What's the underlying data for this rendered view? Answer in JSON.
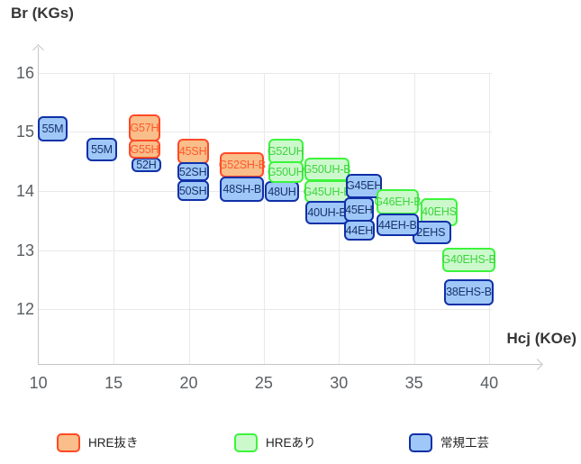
{
  "chart_data": {
    "type": "scatter",
    "title": "",
    "xlabel": "Hcj (KOe)",
    "ylabel": "Br (KGs)",
    "xlim": [
      10,
      43.5
    ],
    "ylim": [
      11.5,
      16.5
    ],
    "xticks": [
      10,
      15,
      20,
      25,
      30,
      35,
      40
    ],
    "yticks": [
      16,
      15,
      14,
      13,
      12
    ],
    "grid": true,
    "legend_position": "bottom",
    "groups": {
      "hre_removed": {
        "label": "HRE抜き",
        "fill": "#f9be8a",
        "border": "#ff4a26",
        "text": "#ff5a2b"
      },
      "hre_added": {
        "label": "HREあり",
        "fill": "#ccf9cc",
        "border": "#3cf43c",
        "text": "#3ed43e"
      },
      "standard": {
        "label": "常規工芸",
        "fill": "#9fc7f7",
        "border": "#1030a8",
        "text": "#17336f"
      }
    },
    "items": [
      {
        "label": "55M",
        "group": "standard",
        "hcj": [
          9.96,
          11.94
        ],
        "br": [
          14.84,
          15.26
        ]
      },
      {
        "label": "55M",
        "group": "standard",
        "hcj": [
          13.2,
          15.23
        ],
        "br": [
          14.5,
          14.9
        ]
      },
      {
        "label": "52H",
        "group": "standard",
        "hcj": [
          16.19,
          18.17
        ],
        "br": [
          14.32,
          14.57
        ]
      },
      {
        "label": "G57H",
        "group": "hre_removed",
        "hcj": [
          15.99,
          18.13
        ],
        "br": [
          14.83,
          15.3
        ]
      },
      {
        "label": "G55H",
        "group": "hre_removed",
        "hcj": [
          15.99,
          18.13
        ],
        "br": [
          14.54,
          14.87
        ]
      },
      {
        "label": "45SH",
        "group": "hre_removed",
        "hcj": [
          19.23,
          21.33
        ],
        "br": [
          14.46,
          14.88
        ]
      },
      {
        "label": "52SH",
        "group": "standard",
        "hcj": [
          19.23,
          21.33
        ],
        "br": [
          14.16,
          14.49
        ]
      },
      {
        "label": "50SH",
        "group": "standard",
        "hcj": [
          19.23,
          21.33
        ],
        "br": [
          13.83,
          14.18
        ]
      },
      {
        "label": "G52SH-B",
        "group": "hre_removed",
        "hcj": [
          22.09,
          25.02
        ],
        "br": [
          14.22,
          14.66
        ]
      },
      {
        "label": "48SH-B",
        "group": "standard",
        "hcj": [
          22.09,
          25.02
        ],
        "br": [
          13.82,
          14.24
        ]
      },
      {
        "label": "48UH",
        "group": "standard",
        "hcj": [
          25.04,
          27.37
        ],
        "br": [
          13.81,
          14.16
        ]
      },
      {
        "label": "G52UH",
        "group": "hre_added",
        "hcj": [
          25.29,
          27.63
        ],
        "br": [
          14.46,
          14.89
        ]
      },
      {
        "label": "G50UH",
        "group": "hre_added",
        "hcj": [
          25.29,
          27.63
        ],
        "br": [
          14.13,
          14.5
        ]
      },
      {
        "label": "G50UH-B",
        "group": "hre_added",
        "hcj": [
          27.69,
          30.72
        ],
        "br": [
          14.16,
          14.56
        ]
      },
      {
        "label": "G45UH-B",
        "group": "hre_added",
        "hcj": [
          27.69,
          30.72
        ],
        "br": [
          13.8,
          14.18
        ]
      },
      {
        "label": "40UH-B",
        "group": "standard",
        "hcj": [
          27.78,
          30.62
        ],
        "br": [
          13.44,
          13.83
        ]
      },
      {
        "label": "G45EH",
        "group": "standard",
        "hcj": [
          30.46,
          32.88
        ],
        "br": [
          13.88,
          14.29
        ]
      },
      {
        "label": "45EH",
        "group": "standard",
        "hcj": [
          30.32,
          32.32
        ],
        "br": [
          13.48,
          13.89
        ]
      },
      {
        "label": "44EH",
        "group": "standard",
        "hcj": [
          30.32,
          32.38
        ],
        "br": [
          13.16,
          13.51
        ]
      },
      {
        "label": "G46EH-B",
        "group": "hre_added",
        "hcj": [
          32.48,
          35.32
        ],
        "br": [
          13.6,
          14.03
        ]
      },
      {
        "label": "40EHS",
        "group": "hre_added",
        "hcj": [
          35.42,
          37.91
        ],
        "br": [
          13.41,
          13.88
        ]
      },
      {
        "label": "42EHS",
        "group": "standard",
        "hcj": [
          34.92,
          37.45
        ],
        "br": [
          13.1,
          13.5
        ]
      },
      {
        "label": "44EH-B",
        "group": "standard",
        "hcj": [
          32.48,
          35.32
        ],
        "br": [
          13.23,
          13.62
        ]
      },
      {
        "label": "G40EHS-B",
        "group": "hre_added",
        "hcj": [
          36.9,
          40.4
        ],
        "br": [
          12.63,
          13.04
        ]
      },
      {
        "label": "38EHS-B",
        "group": "standard",
        "hcj": [
          37.0,
          40.29
        ],
        "br": [
          12.07,
          12.51
        ]
      }
    ]
  },
  "axes": {
    "y_title": "Br (KGs)",
    "x_title": "Hcj (KOe)"
  },
  "legend": {
    "items": [
      {
        "label": "HRE抜き",
        "group": "hre_removed"
      },
      {
        "label": "HREあり",
        "group": "hre_added"
      },
      {
        "label": "常規工芸",
        "group": "standard"
      }
    ]
  }
}
